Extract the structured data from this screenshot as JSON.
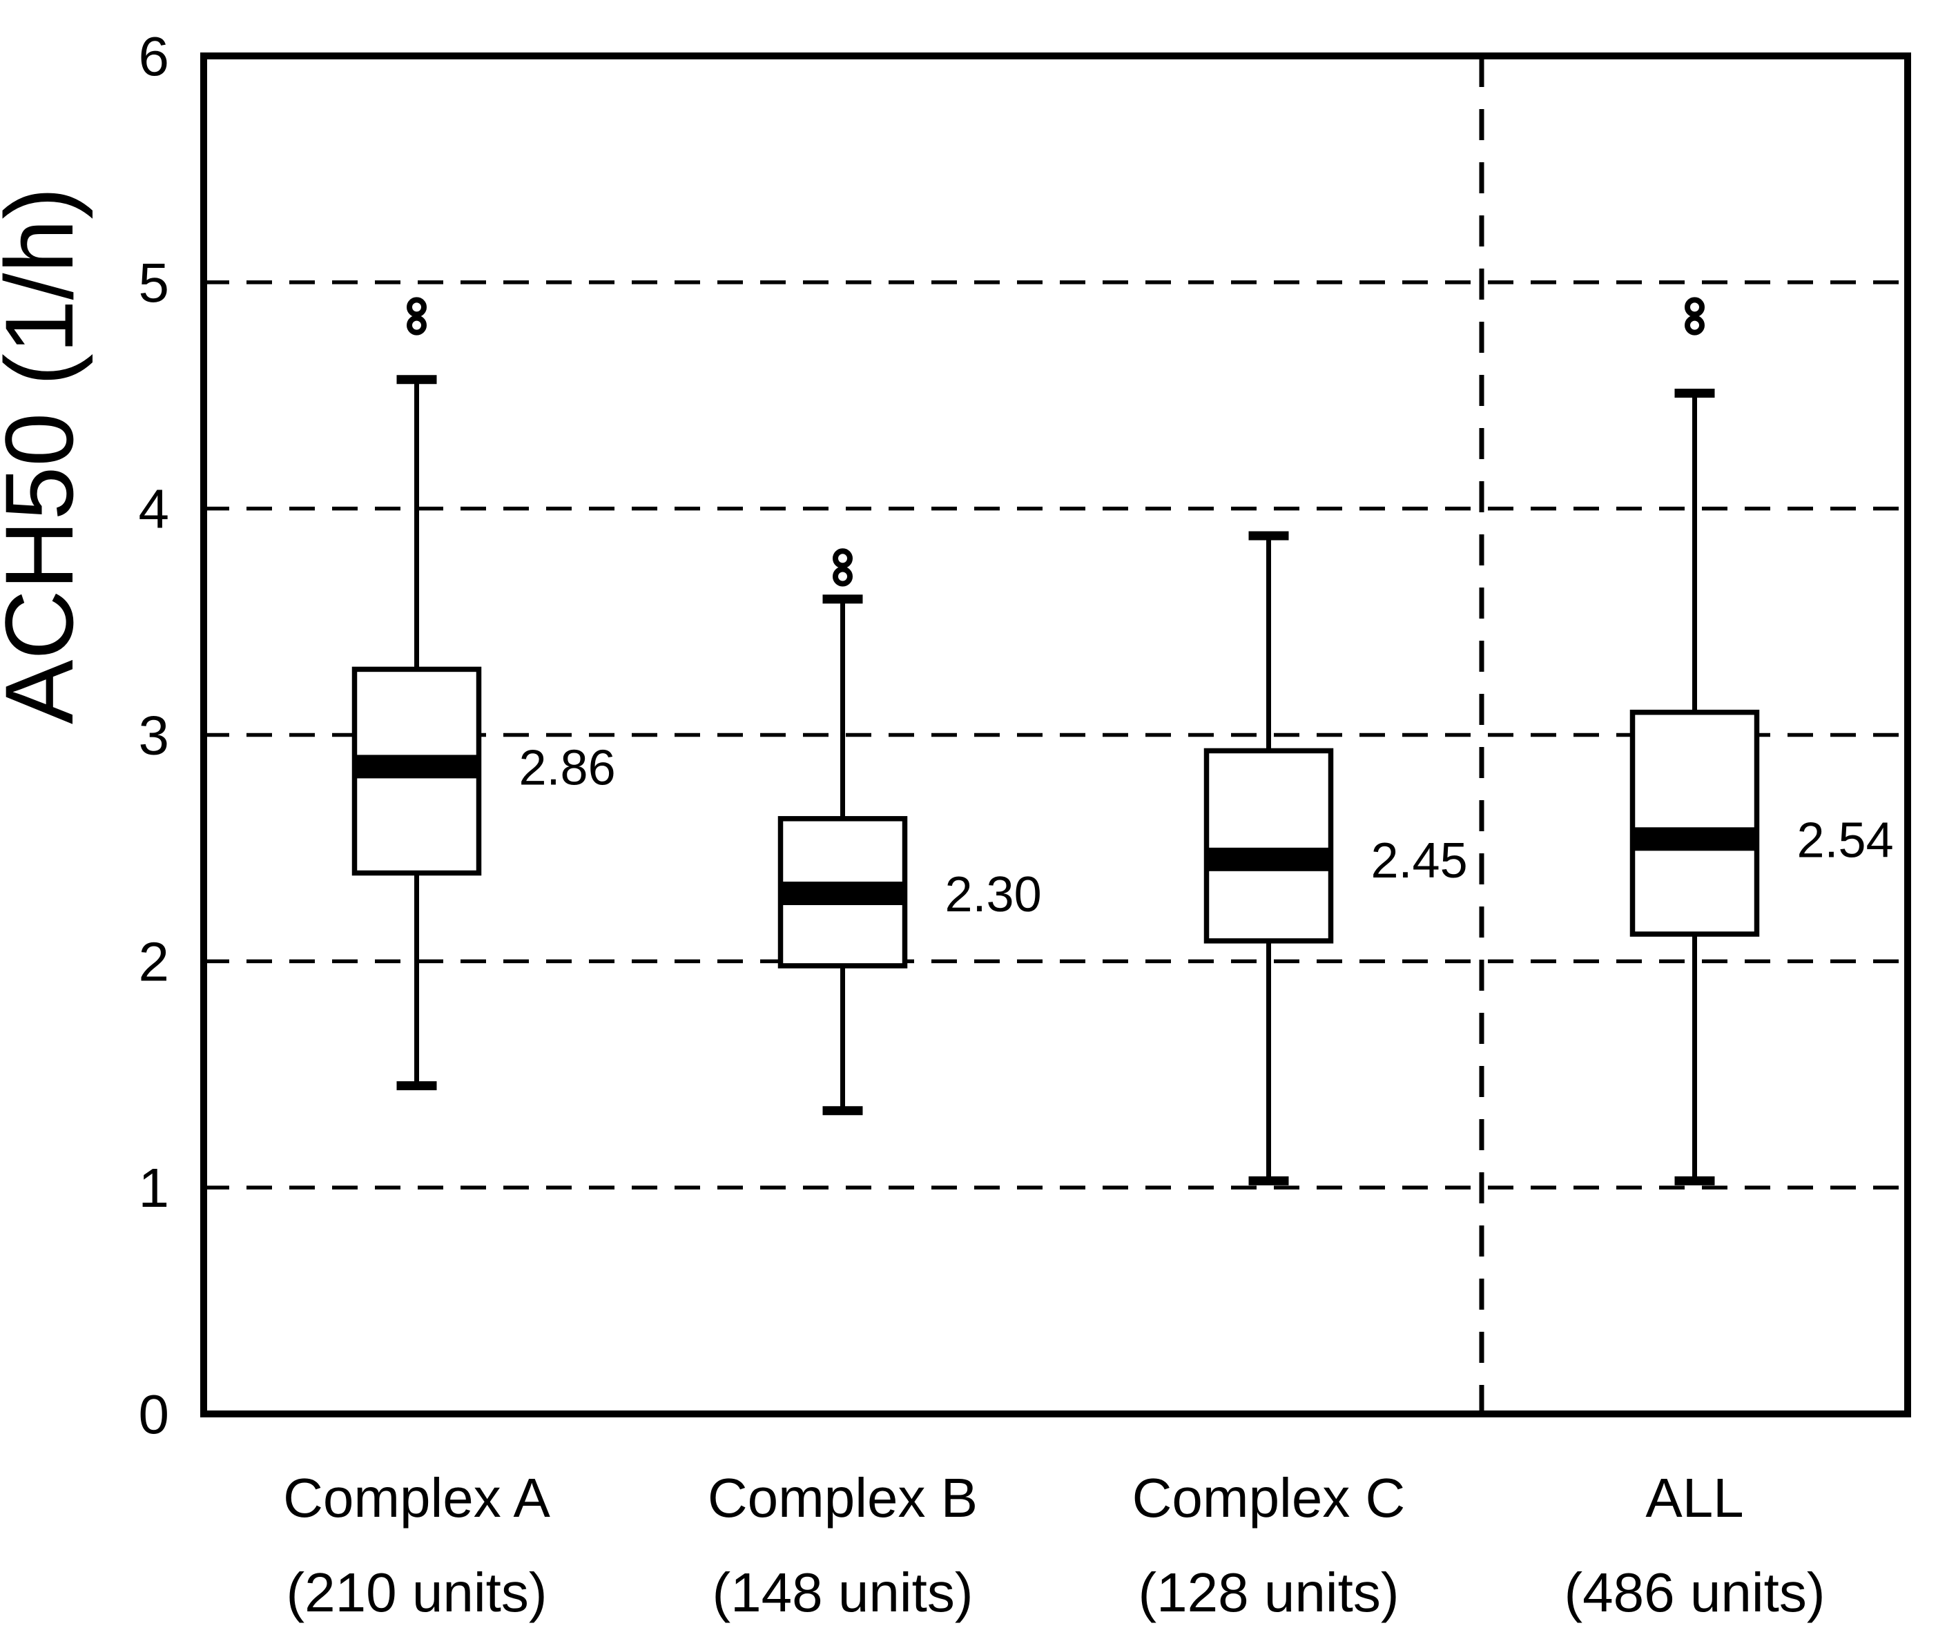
{
  "page": {
    "background": "#ffffff",
    "ink": "#000000"
  },
  "y_axis": {
    "label": "ACH50 (1/h)",
    "tick_labels": [
      "0",
      "1",
      "2",
      "3",
      "4",
      "5",
      "6"
    ]
  },
  "chart_data": {
    "type": "boxplot",
    "title": "",
    "xlabel": "",
    "ylabel": "ACH50 (1/h)",
    "ylim": [
      0,
      6
    ],
    "yticks": [
      0,
      1,
      2,
      3,
      4,
      5,
      6
    ],
    "grid": "horizontal dashed gridlines at y=1,2,3,4,5; solid rectangular plot border",
    "legend": "none",
    "separator": "vertical dashed line between Complex C group and ALL group at 75% of plot width",
    "categories": [
      "Complex A",
      "Complex B",
      "Complex C",
      "ALL"
    ],
    "category_sublabels": [
      "(210 units)",
      "(148 units)",
      "(128 units)",
      "(486 units)"
    ],
    "series": [
      {
        "name": "Complex A",
        "units_count": "210",
        "whisker_low": 1.45,
        "q1": 2.39,
        "median": 2.86,
        "q3": 3.29,
        "whisker_high": 4.57,
        "outliers": [
          4.81,
          4.89
        ],
        "median_label": "2.86"
      },
      {
        "name": "Complex B",
        "units_count": "148",
        "whisker_low": 1.34,
        "q1": 1.98,
        "median": 2.3,
        "q3": 2.63,
        "whisker_high": 3.6,
        "outliers": [
          3.7,
          3.78
        ],
        "median_label": "2.30"
      },
      {
        "name": "Complex C",
        "units_count": "128",
        "whisker_low": 1.03,
        "q1": 2.09,
        "median": 2.45,
        "q3": 2.93,
        "whisker_high": 3.88,
        "outliers": [],
        "median_label": "2.45"
      },
      {
        "name": "ALL",
        "units_count": "486",
        "whisker_low": 1.03,
        "q1": 2.12,
        "median": 2.54,
        "q3": 3.1,
        "whisker_high": 4.51,
        "outliers": [
          4.81,
          4.89
        ],
        "median_label": "2.54"
      }
    ]
  }
}
